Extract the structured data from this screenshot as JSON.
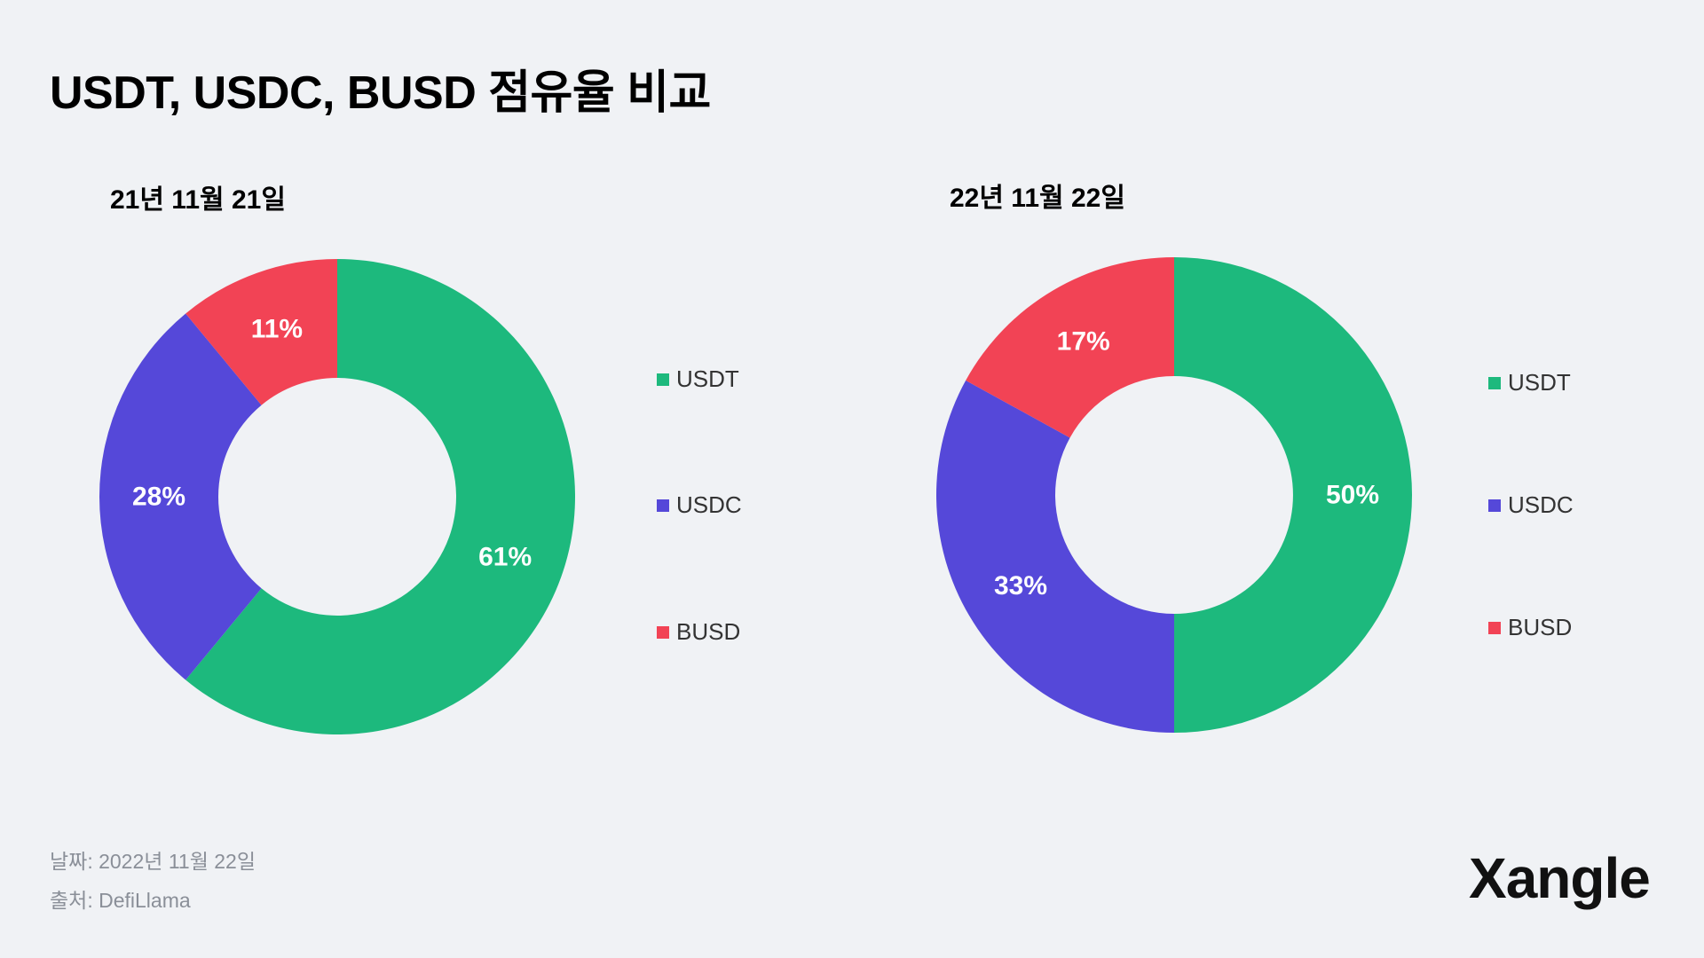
{
  "title": "USDT, USDC, BUSD 점유율 비교",
  "colors": {
    "usdt": "#1db97d",
    "usdc": "#5548d9",
    "busd": "#f24355",
    "background": "#f0f2f5"
  },
  "chart_data": [
    {
      "type": "pie",
      "title": "21년 11월 21일",
      "categories": [
        "USDT",
        "USDC",
        "BUSD"
      ],
      "values": [
        61,
        28,
        11
      ],
      "value_labels": [
        "61%",
        "28%",
        "11%"
      ],
      "colors": [
        "#1db97d",
        "#5548d9",
        "#f24355"
      ],
      "legend": [
        "USDT",
        "USDC",
        "BUSD"
      ],
      "legend_position": "right"
    },
    {
      "type": "pie",
      "title": "22년 11월 22일",
      "categories": [
        "USDT",
        "USDC",
        "BUSD"
      ],
      "values": [
        50,
        33,
        17
      ],
      "value_labels": [
        "50%",
        "33%",
        "17%"
      ],
      "colors": [
        "#1db97d",
        "#5548d9",
        "#f24355"
      ],
      "legend": [
        "USDT",
        "USDC",
        "BUSD"
      ],
      "legend_position": "right"
    }
  ],
  "footer": {
    "date": "날짜: 2022년 11월 22일",
    "source": "출처: DefiLlama"
  },
  "logo": "Xangle"
}
